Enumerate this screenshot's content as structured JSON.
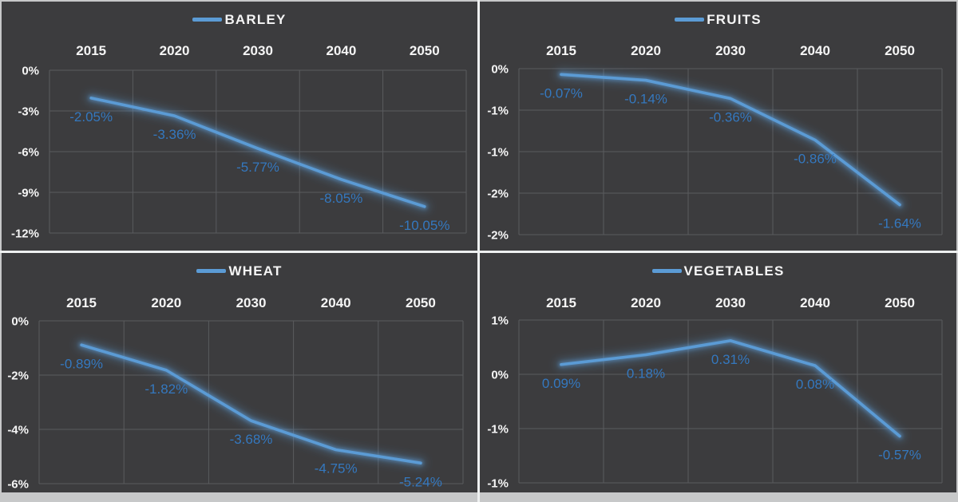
{
  "colors": {
    "frame": "#c7c8c9",
    "divider": "#eef0f0",
    "chart_bg": "#3c3c3e",
    "grid": "#5a5b5e",
    "line": "#5b9bd5",
    "data_label": "#3478bf",
    "axis_text": "#f5f5f5"
  },
  "layout_hint": "2x2 grid of line charts, legend on top, category axis labels above plot, value axis labels on left, dark background",
  "chart_data": [
    {
      "type": "line",
      "title": "BARLEY",
      "categories": [
        "2015",
        "2020",
        "2030",
        "2040",
        "2050"
      ],
      "values": [
        -2.05,
        -3.36,
        -5.77,
        -8.05,
        -10.05
      ],
      "data_labels": [
        "-2.05%",
        "-3.36%",
        "-5.77%",
        "-8.05%",
        "-10.05%"
      ],
      "y_axis": {
        "max": 0,
        "min": -12,
        "tick_values": [
          0,
          -3,
          -6,
          -9,
          -12
        ],
        "tick_labels": [
          "0%",
          "-3%",
          "-6%",
          "-9%",
          "-12%"
        ]
      },
      "legend_position": "top",
      "x_axis_position": "top",
      "grid": true
    },
    {
      "type": "line",
      "title": "FRUITS",
      "categories": [
        "2015",
        "2020",
        "2030",
        "2040",
        "2050"
      ],
      "values": [
        -0.07,
        -0.14,
        -0.36,
        -0.86,
        -1.64
      ],
      "data_labels": [
        "-0.07%",
        "-0.14%",
        "-0.36%",
        "-0.86%",
        "-1.64%"
      ],
      "y_axis": {
        "max": 0,
        "min": -2,
        "tick_values": [
          0,
          -0.5,
          -1,
          -1.5,
          -2
        ],
        "tick_labels": [
          "0%",
          "-1%",
          "-1%",
          "-2%",
          "-2%"
        ]
      },
      "legend_position": "top",
      "x_axis_position": "top",
      "grid": true
    },
    {
      "type": "line",
      "title": "WHEAT",
      "categories": [
        "2015",
        "2020",
        "2030",
        "2040",
        "2050"
      ],
      "values": [
        -0.89,
        -1.82,
        -3.68,
        -4.75,
        -5.24
      ],
      "data_labels": [
        "-0.89%",
        "-1.82%",
        "-3.68%",
        "-4.75%",
        "-5.24%"
      ],
      "y_axis": {
        "max": 0,
        "min": -6,
        "tick_values": [
          0,
          -2,
          -4,
          -6
        ],
        "tick_labels": [
          "0%",
          "-2%",
          "-4%",
          "-6%"
        ]
      },
      "legend_position": "top",
      "x_axis_position": "top",
      "grid": true
    },
    {
      "type": "line",
      "title": "VEGETABLES",
      "categories": [
        "2015",
        "2020",
        "2030",
        "2040",
        "2050"
      ],
      "values": [
        0.09,
        0.18,
        0.31,
        0.08,
        -0.57
      ],
      "data_labels": [
        "0.09%",
        "0.18%",
        "0.31%",
        "0.08%",
        "-0.57%"
      ],
      "y_axis": {
        "max": 0.5,
        "min": -1,
        "tick_values": [
          0.5,
          0,
          -0.5,
          -1
        ],
        "tick_labels": [
          "1%",
          "0%",
          "-1%",
          "-1%"
        ]
      },
      "legend_position": "top",
      "x_axis_position": "top",
      "grid": true
    }
  ]
}
